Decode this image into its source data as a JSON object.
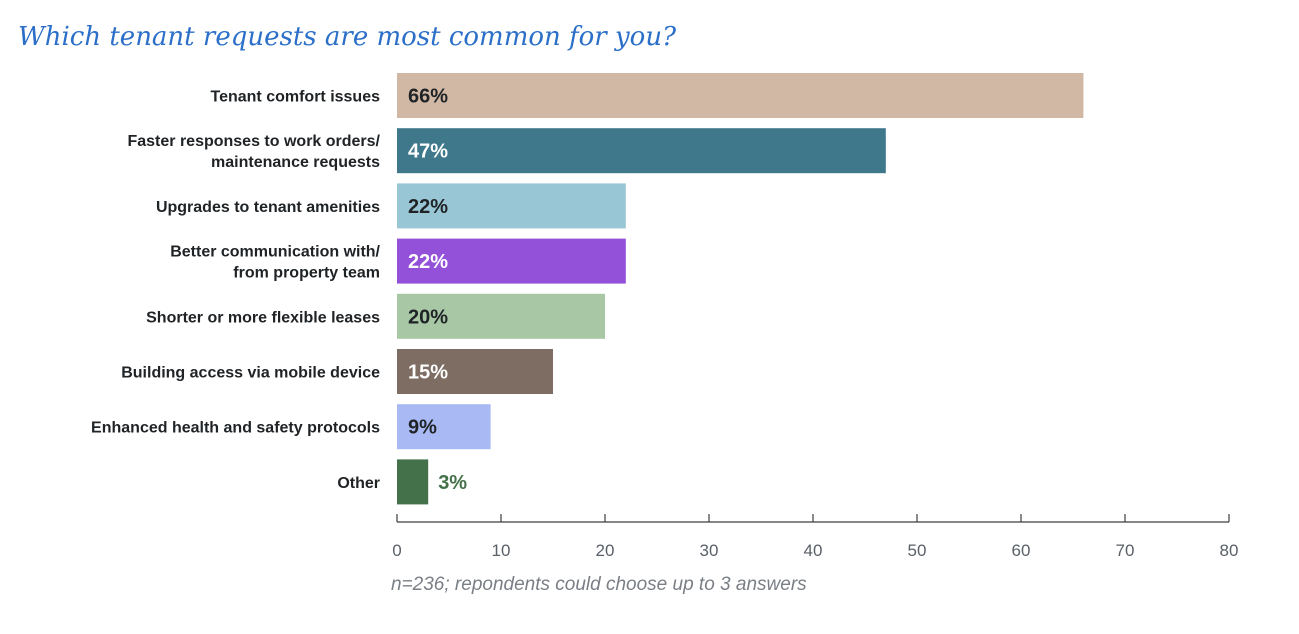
{
  "chart_data": {
    "type": "bar",
    "orientation": "horizontal",
    "title": "Which tenant requests are most common for you?",
    "footnote": "n=236; repondents could choose up to 3 answers",
    "categories": [
      [
        "Tenant comfort issues"
      ],
      [
        "Faster responses to work orders/",
        "maintenance requests"
      ],
      [
        "Upgrades to tenant amenities"
      ],
      [
        "Better communication with/",
        "from property team"
      ],
      [
        "Shorter or more flexible leases"
      ],
      [
        "Building access via mobile device"
      ],
      [
        "Enhanced health and safety protocols"
      ],
      [
        "Other"
      ]
    ],
    "values": [
      66,
      47,
      22,
      22,
      20,
      15,
      9,
      3
    ],
    "value_labels": [
      "66%",
      "47%",
      "22%",
      "22%",
      "20%",
      "15%",
      "9%",
      "3%"
    ],
    "colors": [
      "#d1b8a5",
      "#3f788b",
      "#99c6d5",
      "#9350d8",
      "#a7c7a5",
      "#7e6d63",
      "#a9b9f4",
      "#44714a"
    ],
    "value_label_colors": [
      "#1f2326",
      "#ffffff",
      "#1f2326",
      "#ffffff",
      "#1f2326",
      "#ffffff",
      "#1f2326",
      "#44714a"
    ],
    "xlim": [
      0,
      80
    ],
    "xticks": [
      0,
      10,
      20,
      30,
      40,
      50,
      60,
      70,
      80
    ],
    "xlabel": "",
    "ylabel": "",
    "grid": false,
    "legend": "none"
  }
}
